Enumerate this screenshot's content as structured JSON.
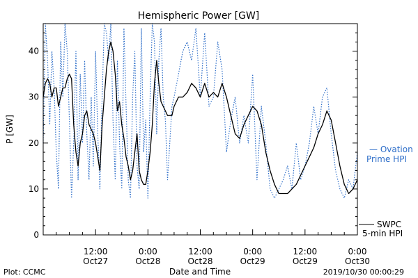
{
  "chart_data": {
    "type": "line",
    "title": "Hemispheric Power [GW]",
    "xlabel": "Date and Time",
    "ylabel": "P [GW]",
    "ylim": [
      0,
      46
    ],
    "y_ticks": [
      0,
      10,
      20,
      30,
      40
    ],
    "x_range_hours": [
      0,
      72
    ],
    "x_ticks": [
      {
        "hour": 12,
        "time": "12:00",
        "date": "Oct27"
      },
      {
        "hour": 24,
        "time": "0:00",
        "date": "Oct28"
      },
      {
        "hour": 36,
        "time": "12:00",
        "date": "Oct28"
      },
      {
        "hour": 48,
        "time": "0:00",
        "date": "Oct29"
      },
      {
        "hour": 60,
        "time": "12:00",
        "date": "Oct29"
      },
      {
        "hour": 72,
        "time": "0:00",
        "date": "Oct30"
      }
    ],
    "series": [
      {
        "name": "SWPC 5-min HPI",
        "color": "#000000",
        "style": "solid",
        "x": [
          0,
          0.5,
          1,
          1.5,
          2,
          2.5,
          3,
          3.5,
          4,
          4.5,
          5,
          5.5,
          6,
          6.5,
          7,
          7.5,
          8,
          8.5,
          9,
          9.5,
          10,
          10.5,
          11,
          11.5,
          12,
          12.5,
          13,
          13.5,
          14,
          14.5,
          15,
          15.5,
          16,
          16.5,
          17,
          17.5,
          18,
          18.5,
          19,
          19.5,
          20,
          20.5,
          21,
          21.5,
          22,
          22.5,
          23,
          23.5,
          24,
          24.5,
          25,
          25.5,
          26,
          26.5,
          27,
          27.5,
          28,
          28.5,
          29,
          29.5,
          30,
          31,
          32,
          33,
          34,
          35,
          36,
          37,
          38,
          39,
          40,
          41,
          42,
          43,
          44,
          45,
          46,
          47,
          48,
          49,
          50,
          51,
          52,
          53,
          54,
          55,
          56,
          57,
          58,
          59,
          60,
          61,
          62,
          63,
          64,
          65,
          66,
          67,
          68,
          69,
          70,
          71,
          72
        ],
        "y": [
          30,
          33,
          34,
          33,
          30,
          32,
          32,
          28,
          30,
          32,
          32,
          34,
          35,
          34,
          24,
          18,
          15,
          20,
          22,
          26,
          27,
          24,
          23,
          22,
          20,
          17,
          14,
          24,
          30,
          36,
          40,
          42,
          40,
          35,
          27,
          29,
          24,
          21,
          17,
          15,
          12,
          14,
          18,
          22,
          14,
          12,
          11,
          11,
          14,
          18,
          24,
          33,
          38,
          33,
          29,
          28,
          27,
          26,
          26,
          26,
          28,
          30,
          30,
          31,
          33,
          32,
          30,
          33,
          30,
          31,
          30,
          33,
          30,
          26,
          22,
          21,
          24,
          26,
          28,
          27,
          24,
          18,
          14,
          11,
          9,
          9,
          9,
          10,
          11,
          13,
          15,
          17,
          19,
          22,
          24,
          27,
          25,
          20,
          15,
          11,
          9,
          10,
          12
        ]
      },
      {
        "name": "Ovation Prime HPI",
        "color": "#2f6fc9",
        "style": "dotted",
        "x": [
          0,
          0.5,
          1,
          1.5,
          2,
          2.5,
          3,
          3.5,
          4,
          4.5,
          5,
          5.5,
          6,
          6.5,
          7,
          7.5,
          8,
          8.5,
          9,
          9.5,
          10,
          10.5,
          11,
          11.5,
          12,
          12.5,
          13,
          13.5,
          14,
          14.5,
          15,
          15.5,
          16,
          16.5,
          17,
          17.5,
          18,
          18.5,
          19,
          19.5,
          20,
          20.5,
          21,
          21.5,
          22,
          22.5,
          23,
          23.5,
          24,
          24.5,
          25,
          25.5,
          26,
          26.5,
          27,
          27.5,
          28,
          28.5,
          29,
          29.5,
          30,
          31,
          32,
          33,
          34,
          35,
          36,
          37,
          38,
          39,
          40,
          41,
          42,
          43,
          44,
          45,
          46,
          47,
          48,
          49,
          50,
          51,
          52,
          53,
          54,
          55,
          56,
          57,
          58,
          59,
          60,
          61,
          62,
          63,
          64,
          65,
          66,
          67,
          68,
          69,
          70,
          71,
          72
        ],
        "y": [
          20,
          46,
          38,
          24,
          40,
          32,
          18,
          10,
          42,
          30,
          46,
          40,
          25,
          8,
          20,
          40,
          12,
          35,
          20,
          38,
          22,
          12,
          30,
          15,
          40,
          22,
          10,
          30,
          46,
          44,
          38,
          46,
          25,
          12,
          38,
          20,
          10,
          45,
          28,
          12,
          8,
          30,
          40,
          15,
          10,
          45,
          18,
          25,
          8,
          30,
          46,
          42,
          22,
          38,
          45,
          30,
          25,
          12,
          20,
          28,
          30,
          35,
          40,
          42,
          38,
          45,
          30,
          44,
          28,
          30,
          42,
          36,
          18,
          25,
          30,
          20,
          26,
          20,
          35,
          12,
          28,
          20,
          10,
          8,
          10,
          12,
          15,
          10,
          20,
          12,
          15,
          20,
          28,
          22,
          30,
          32,
          22,
          14,
          10,
          8,
          12,
          10,
          18
        ]
      }
    ],
    "legend": [
      {
        "lines": [
          "— Ovation",
          "Prime HPI"
        ],
        "color": "#2f6fc9",
        "placement": "right-middle"
      },
      {
        "lines": [
          "SWPC",
          "5-min HPI"
        ],
        "color": "#000000",
        "placement": "right-bottom"
      }
    ],
    "grid": false
  },
  "footer": {
    "left": "Plot: CCMC",
    "right": "2019/10/30 00:00:29"
  }
}
